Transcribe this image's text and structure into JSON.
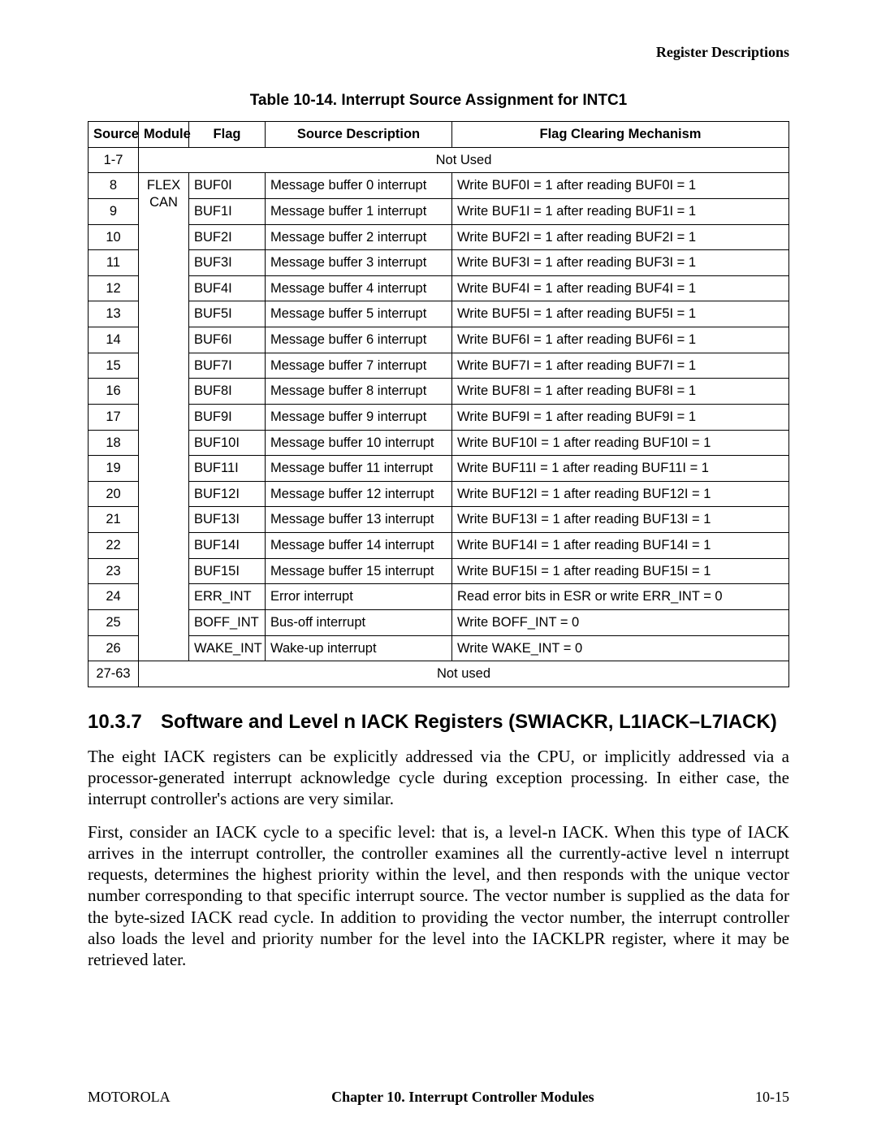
{
  "running_head": "Register Descriptions",
  "table": {
    "caption": "Table 10-14. Interrupt Source Assignment for INTC1",
    "columns": [
      "Source",
      "Module",
      "Flag",
      "Source Description",
      "Flag Clearing Mechanism"
    ],
    "first_source": "1-7",
    "first_notused": "Not Used",
    "module_top": "FLEX",
    "module_bottom": "CAN",
    "rows": [
      {
        "source": "8",
        "flag": "BUF0I",
        "desc": "Message buffer 0 interrupt",
        "mech": "Write BUF0I = 1 after reading BUF0I = 1"
      },
      {
        "source": "9",
        "flag": "BUF1I",
        "desc": "Message buffer 1 interrupt",
        "mech": "Write BUF1I = 1 after reading BUF1I = 1"
      },
      {
        "source": "10",
        "flag": "BUF2I",
        "desc": "Message buffer 2 interrupt",
        "mech": "Write BUF2I = 1 after reading BUF2I = 1"
      },
      {
        "source": "11",
        "flag": "BUF3I",
        "desc": "Message buffer 3 interrupt",
        "mech": "Write BUF3I = 1 after reading BUF3I = 1"
      },
      {
        "source": "12",
        "flag": "BUF4I",
        "desc": "Message buffer 4 interrupt",
        "mech": "Write BUF4I = 1 after reading BUF4I = 1"
      },
      {
        "source": "13",
        "flag": "BUF5I",
        "desc": "Message buffer 5 interrupt",
        "mech": "Write BUF5I = 1 after reading BUF5I = 1"
      },
      {
        "source": "14",
        "flag": "BUF6I",
        "desc": "Message buffer 6 interrupt",
        "mech": "Write BUF6I = 1 after reading BUF6I = 1"
      },
      {
        "source": "15",
        "flag": "BUF7I",
        "desc": "Message buffer 7 interrupt",
        "mech": "Write BUF7I = 1 after reading BUF7I = 1"
      },
      {
        "source": "16",
        "flag": "BUF8I",
        "desc": "Message buffer 8 interrupt",
        "mech": "Write BUF8I = 1 after reading BUF8I = 1"
      },
      {
        "source": "17",
        "flag": "BUF9I",
        "desc": "Message buffer 9 interrupt",
        "mech": "Write BUF9I = 1 after reading BUF9I = 1"
      },
      {
        "source": "18",
        "flag": "BUF10I",
        "desc": "Message buffer 10 interrupt",
        "mech": "Write BUF10I = 1 after reading BUF10I = 1"
      },
      {
        "source": "19",
        "flag": "BUF11I",
        "desc": "Message buffer 11 interrupt",
        "mech": "Write BUF11I = 1 after reading BUF11I = 1"
      },
      {
        "source": "20",
        "flag": "BUF12I",
        "desc": "Message buffer 12 interrupt",
        "mech": "Write BUF12I = 1 after reading BUF12I = 1"
      },
      {
        "source": "21",
        "flag": "BUF13I",
        "desc": "Message buffer 13 interrupt",
        "mech": "Write BUF13I = 1 after reading BUF13I = 1"
      },
      {
        "source": "22",
        "flag": "BUF14I",
        "desc": "Message buffer 14 interrupt",
        "mech": "Write BUF14I = 1 after reading BUF14I = 1"
      },
      {
        "source": "23",
        "flag": "BUF15I",
        "desc": "Message buffer 15 interrupt",
        "mech": "Write BUF15I = 1 after reading BUF15I = 1"
      },
      {
        "source": "24",
        "flag": "ERR_INT",
        "desc": "Error interrupt",
        "mech": "Read error bits in ESR or write ERR_INT = 0"
      },
      {
        "source": "25",
        "flag": "BOFF_INT",
        "desc": "Bus-off interrupt",
        "mech": "Write BOFF_INT = 0"
      },
      {
        "source": "26",
        "flag": "WAKE_INT",
        "desc": "Wake-up interrupt",
        "mech": "Write WAKE_INT = 0"
      }
    ],
    "last_source": "27-63",
    "last_notused": "Not used"
  },
  "section": {
    "number": "10.3.7",
    "title": "Software and Level n IACK Registers (SWIACKR, L1IACK–L7IACK)",
    "para1": "The eight IACK registers can be explicitly addressed via the CPU, or implicitly addressed via a processor-generated interrupt acknowledge cycle during exception processing. In either case, the interrupt controller's actions are very similar.",
    "para2": "First, consider an IACK cycle to a specific level: that is, a level-n IACK. When this type of IACK arrives in the interrupt controller, the controller examines all the currently-active level n interrupt requests, determines the highest priority within the level, and then responds with the unique vector number corresponding to that specific interrupt source. The vector number is supplied as the data for the byte-sized IACK read cycle. In addition to providing the vector number, the interrupt controller also loads the level and priority number for the level into the IACKLPR register, where it may be retrieved later."
  },
  "footer": {
    "left": "MOTOROLA",
    "center": "Chapter 10.  Interrupt Controller Modules",
    "right": "10-15"
  }
}
